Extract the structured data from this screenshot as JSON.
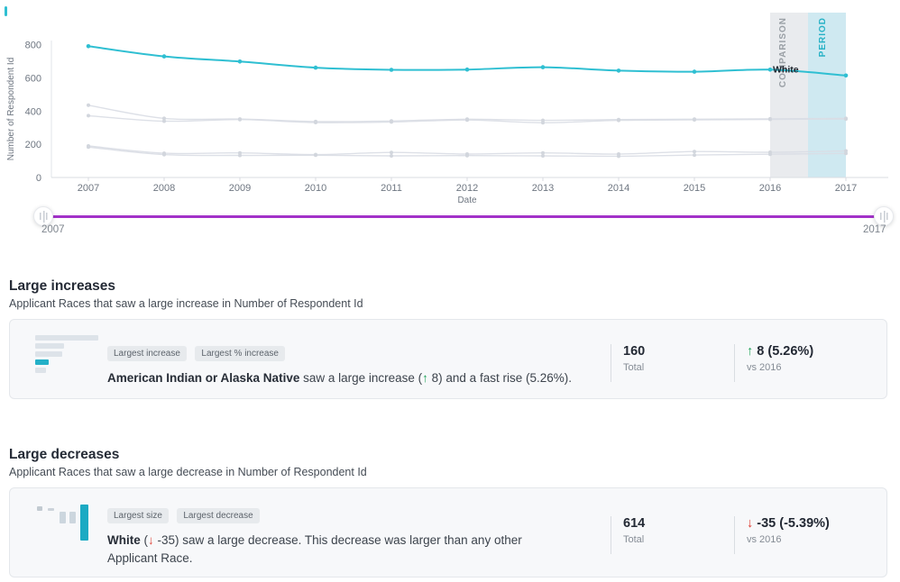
{
  "colors": {
    "accent_teal": "#2fbfd2",
    "gray_line": "#d9dde4",
    "slider_purple": "#a232c8",
    "positive_green": "#23a35c",
    "negative_red": "#df4238",
    "comparison_band": "#e9ebee",
    "period_band": "#cfe9f1",
    "card_background": "#f7f8fa"
  },
  "chart_data": {
    "type": "line",
    "title": "",
    "xlabel": "Date",
    "ylabel": "Number of Respondent Id",
    "x": [
      2007,
      2008,
      2009,
      2010,
      2011,
      2012,
      2013,
      2014,
      2015,
      2016,
      2017
    ],
    "xlim": [
      2007,
      2017
    ],
    "ylim": [
      0,
      990
    ],
    "yticks": [
      0,
      200,
      400,
      600,
      800
    ],
    "grid": false,
    "legend": "none",
    "series": [
      {
        "name": "gray-1",
        "label": "",
        "color": "#d9dde4",
        "highlighted": false,
        "values": [
          435,
          356,
          352,
          337,
          340,
          351,
          344,
          349,
          351,
          353,
          356
        ]
      },
      {
        "name": "gray-2",
        "label": "",
        "color": "#d9dde4",
        "highlighted": false,
        "values": [
          372,
          339,
          349,
          331,
          334,
          346,
          330,
          344,
          347,
          350,
          352
        ]
      },
      {
        "name": "gray-3",
        "label": "",
        "color": "#d9dde4",
        "highlighted": false,
        "values": [
          190,
          146,
          148,
          138,
          151,
          141,
          148,
          141,
          156,
          152,
          160
        ]
      },
      {
        "name": "gray-4",
        "label": "",
        "color": "#d9dde4",
        "highlighted": false,
        "values": [
          183,
          138,
          133,
          134,
          130,
          132,
          130,
          128,
          135,
          140,
          145
        ]
      },
      {
        "name": "white",
        "label": "White",
        "color": "#2fbfd2",
        "highlighted": true,
        "values": [
          790,
          729,
          698,
          661,
          648,
          650,
          664,
          643,
          637,
          649,
          614
        ]
      }
    ],
    "comparison_band": {
      "label": "COMPARISON",
      "x_start": 2016,
      "x_end": 2016.5,
      "fill": "#e9ebee",
      "label_color": "#9aa0a6"
    },
    "period_band": {
      "label": "PERIOD",
      "x_start": 2016.5,
      "x_end": 2017,
      "fill": "#cfe9f1",
      "label_color": "#29b2c6"
    }
  },
  "slider": {
    "start_label": "2007",
    "end_label": "2017"
  },
  "increases": {
    "title": "Large increases",
    "subtitle": "Applicant Races that saw a large increase in Number of Respondent Id",
    "card": {
      "badges": [
        "Largest increase",
        "Largest % increase"
      ],
      "subject": "American Indian or Alaska Native",
      "text_mid": " saw a large increase (",
      "arrow": "↑",
      "text_after": " 8) and a fast rise (5.26%).",
      "total_value": "160",
      "total_label": "Total",
      "change_arrow": "↑",
      "change_value": "8 (5.26%)",
      "change_vs": "vs 2016"
    }
  },
  "decreases": {
    "title": "Large decreases",
    "subtitle": "Applicant Races that saw a large decrease in Number of Respondent Id",
    "card": {
      "badges": [
        "Largest size",
        "Largest decrease"
      ],
      "subject": "White",
      "text_mid": " (",
      "arrow": "↓",
      "text_after": " -35) saw a large decrease. This decrease was larger than any other Applicant Race.",
      "total_value": "614",
      "total_label": "Total",
      "change_arrow": "↓",
      "change_value": "-35 (-5.39%)",
      "change_vs": "vs 2016"
    }
  }
}
